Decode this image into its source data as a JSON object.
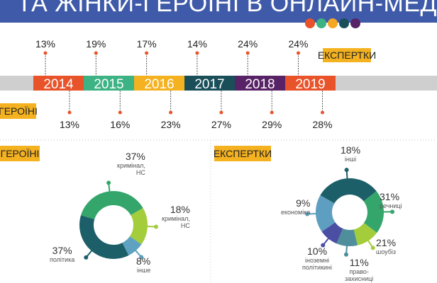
{
  "header": {
    "title": "ТА ЖІНКИ-ГЕРОЇНІ В ОНЛАЙН-МЕДІА",
    "dots": [
      "#e8532a",
      "#3db384",
      "#f4a724",
      "#1a4f5a",
      "#582366"
    ]
  },
  "badges": {
    "experts": "ЕКСПЕРТКИ",
    "heroines": "ГЕРОЇНІ"
  },
  "chart_data": [
    {
      "type": "timeline",
      "categories": [
        "2014",
        "2015",
        "2016",
        "2017",
        "2018",
        "2019"
      ],
      "colors": [
        "#e8532a",
        "#3db384",
        "#f4b221",
        "#1a4f5a",
        "#582366",
        "#e8532a"
      ],
      "series": [
        {
          "name": "ЕКСПЕРТКИ",
          "values": [
            13,
            19,
            17,
            14,
            24,
            24
          ]
        },
        {
          "name": "ГЕРОЇНІ",
          "values": [
            13,
            16,
            23,
            27,
            29,
            28
          ]
        }
      ],
      "labels_top": [
        "13%",
        "19%",
        "17%",
        "14%",
        "24%",
        "24%"
      ],
      "labels_bottom": [
        "13%",
        "16%",
        "23%",
        "27%",
        "29%",
        "28%"
      ]
    },
    {
      "type": "pie",
      "title": "ГЕРОЇНІ",
      "slices": [
        {
          "value": 18,
          "pct": "18%",
          "label": [
            "кримінал,",
            "НС"
          ],
          "color": "#a3cd3b"
        },
        {
          "value": 8,
          "pct": "8%",
          "label": [
            "інше"
          ],
          "color": "#5ea1c0"
        },
        {
          "value": 37,
          "pct": "37%",
          "label": [
            "політика"
          ],
          "color": "#1d5f68"
        },
        {
          "value": 37,
          "pct": "37%",
          "label": [
            "кримінал,",
            "НС"
          ],
          "color": "#34a66b"
        }
      ]
    },
    {
      "type": "pie",
      "title": "ЕКСПЕРТКИ",
      "slices": [
        {
          "value": 31,
          "pct": "31%",
          "label": [
            "речниці"
          ],
          "color": "#1d5f68"
        },
        {
          "value": 21,
          "pct": "21%",
          "label": [
            "шоубіз"
          ],
          "color": "#34a66b"
        },
        {
          "value": 11,
          "pct": "11%",
          "label": [
            "право-",
            "захисниці"
          ],
          "color": "#a3cd3b"
        },
        {
          "value": 10,
          "pct": "10%",
          "label": [
            "іноземні",
            "політикині"
          ],
          "color": "#4e8f9b"
        },
        {
          "value": 9,
          "pct": "9%",
          "label": [
            "економіка"
          ],
          "color": "#4a4fa3"
        },
        {
          "value": 18,
          "pct": "18%",
          "label": [
            "інші"
          ],
          "color": "#5e9ec0"
        }
      ]
    }
  ]
}
